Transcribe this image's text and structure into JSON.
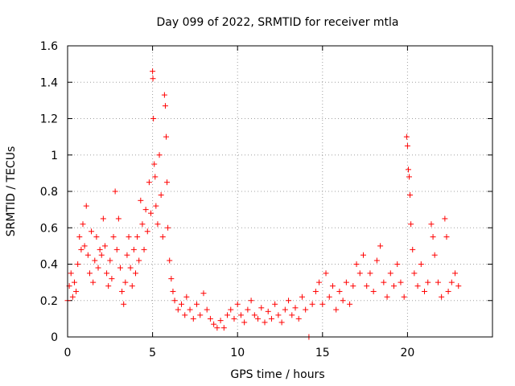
{
  "chart_data": {
    "type": "scatter",
    "title": "Day 099 of 2022, SRMTID for receiver mtla",
    "xlabel": "GPS time / hours",
    "ylabel": "SRMTID / TECUs",
    "xlim": [
      0,
      25
    ],
    "ylim": [
      0,
      1.6
    ],
    "xticks": [
      0,
      5,
      10,
      15,
      20
    ],
    "xtick_labels": [
      "0",
      "5",
      "10",
      "15",
      "20"
    ],
    "yticks": [
      0,
      0.2,
      0.4,
      0.6,
      0.8,
      1,
      1.2,
      1.4,
      1.6
    ],
    "ytick_labels": [
      "0",
      "0.2",
      "0.4",
      "0.6",
      "0.8",
      "1",
      "1.2",
      "1.4",
      "1.6"
    ],
    "grid": true,
    "marker": "+",
    "color": "#ff0000",
    "series": [
      {
        "name": "SRMTID",
        "points": [
          [
            0.0,
            0.2
          ],
          [
            0.1,
            0.28
          ],
          [
            0.2,
            0.35
          ],
          [
            0.3,
            0.22
          ],
          [
            0.4,
            0.3
          ],
          [
            0.5,
            0.25
          ],
          [
            0.6,
            0.4
          ],
          [
            0.7,
            0.55
          ],
          [
            0.8,
            0.48
          ],
          [
            0.9,
            0.62
          ],
          [
            1.0,
            0.5
          ],
          [
            1.1,
            0.72
          ],
          [
            1.2,
            0.45
          ],
          [
            1.3,
            0.35
          ],
          [
            1.4,
            0.58
          ],
          [
            1.5,
            0.3
          ],
          [
            1.6,
            0.42
          ],
          [
            1.7,
            0.55
          ],
          [
            1.8,
            0.38
          ],
          [
            1.9,
            0.48
          ],
          [
            2.0,
            0.45
          ],
          [
            2.1,
            0.65
          ],
          [
            2.2,
            0.5
          ],
          [
            2.3,
            0.35
          ],
          [
            2.4,
            0.28
          ],
          [
            2.5,
            0.42
          ],
          [
            2.6,
            0.32
          ],
          [
            2.7,
            0.55
          ],
          [
            2.8,
            0.8
          ],
          [
            2.9,
            0.48
          ],
          [
            3.0,
            0.65
          ],
          [
            3.1,
            0.38
          ],
          [
            3.2,
            0.25
          ],
          [
            3.3,
            0.18
          ],
          [
            3.4,
            0.3
          ],
          [
            3.5,
            0.45
          ],
          [
            3.6,
            0.55
          ],
          [
            3.7,
            0.38
          ],
          [
            3.8,
            0.28
          ],
          [
            3.9,
            0.48
          ],
          [
            4.0,
            0.35
          ],
          [
            4.1,
            0.55
          ],
          [
            4.2,
            0.42
          ],
          [
            4.3,
            0.75
          ],
          [
            4.4,
            0.62
          ],
          [
            4.5,
            0.48
          ],
          [
            4.6,
            0.7
          ],
          [
            4.7,
            0.58
          ],
          [
            4.8,
            0.85
          ],
          [
            4.9,
            0.68
          ],
          [
            5.0,
            1.46
          ],
          [
            5.02,
            1.42
          ],
          [
            5.05,
            1.2
          ],
          [
            5.1,
            0.95
          ],
          [
            5.15,
            0.88
          ],
          [
            5.2,
            0.72
          ],
          [
            5.3,
            0.62
          ],
          [
            5.4,
            1.0
          ],
          [
            5.5,
            0.78
          ],
          [
            5.6,
            0.55
          ],
          [
            5.7,
            1.33
          ],
          [
            5.75,
            1.27
          ],
          [
            5.8,
            1.1
          ],
          [
            5.85,
            0.85
          ],
          [
            5.9,
            0.6
          ],
          [
            6.0,
            0.42
          ],
          [
            6.1,
            0.32
          ],
          [
            6.2,
            0.25
          ],
          [
            6.3,
            0.2
          ],
          [
            6.5,
            0.15
          ],
          [
            6.7,
            0.18
          ],
          [
            6.9,
            0.12
          ],
          [
            7.0,
            0.22
          ],
          [
            7.2,
            0.15
          ],
          [
            7.4,
            0.1
          ],
          [
            7.6,
            0.18
          ],
          [
            7.8,
            0.12
          ],
          [
            8.0,
            0.24
          ],
          [
            8.2,
            0.15
          ],
          [
            8.4,
            0.1
          ],
          [
            8.6,
            0.07
          ],
          [
            8.8,
            0.05
          ],
          [
            9.0,
            0.09
          ],
          [
            9.2,
            0.05
          ],
          [
            9.4,
            0.12
          ],
          [
            9.6,
            0.15
          ],
          [
            9.8,
            0.1
          ],
          [
            10.0,
            0.18
          ],
          [
            10.2,
            0.12
          ],
          [
            10.4,
            0.08
          ],
          [
            10.6,
            0.15
          ],
          [
            10.8,
            0.2
          ],
          [
            11.0,
            0.12
          ],
          [
            11.2,
            0.1
          ],
          [
            11.4,
            0.16
          ],
          [
            11.6,
            0.08
          ],
          [
            11.8,
            0.14
          ],
          [
            12.0,
            0.1
          ],
          [
            12.2,
            0.18
          ],
          [
            12.4,
            0.12
          ],
          [
            12.6,
            0.08
          ],
          [
            12.8,
            0.15
          ],
          [
            13.0,
            0.2
          ],
          [
            13.2,
            0.12
          ],
          [
            13.4,
            0.16
          ],
          [
            13.6,
            0.1
          ],
          [
            13.8,
            0.22
          ],
          [
            14.0,
            0.15
          ],
          [
            14.2,
            0.0
          ],
          [
            14.4,
            0.18
          ],
          [
            14.6,
            0.25
          ],
          [
            14.8,
            0.3
          ],
          [
            15.0,
            0.18
          ],
          [
            15.2,
            0.35
          ],
          [
            15.4,
            0.22
          ],
          [
            15.6,
            0.28
          ],
          [
            15.8,
            0.15
          ],
          [
            16.0,
            0.25
          ],
          [
            16.2,
            0.2
          ],
          [
            16.4,
            0.3
          ],
          [
            16.6,
            0.18
          ],
          [
            16.8,
            0.28
          ],
          [
            17.0,
            0.4
          ],
          [
            17.2,
            0.35
          ],
          [
            17.4,
            0.45
          ],
          [
            17.6,
            0.28
          ],
          [
            17.8,
            0.35
          ],
          [
            18.0,
            0.25
          ],
          [
            18.2,
            0.42
          ],
          [
            18.4,
            0.5
          ],
          [
            18.6,
            0.3
          ],
          [
            18.8,
            0.22
          ],
          [
            19.0,
            0.35
          ],
          [
            19.2,
            0.28
          ],
          [
            19.4,
            0.4
          ],
          [
            19.6,
            0.3
          ],
          [
            19.8,
            0.22
          ],
          [
            19.95,
            1.1
          ],
          [
            20.0,
            1.05
          ],
          [
            20.05,
            0.92
          ],
          [
            20.1,
            0.88
          ],
          [
            20.15,
            0.78
          ],
          [
            20.2,
            0.62
          ],
          [
            20.3,
            0.48
          ],
          [
            20.4,
            0.35
          ],
          [
            20.6,
            0.28
          ],
          [
            20.8,
            0.4
          ],
          [
            21.0,
            0.25
          ],
          [
            21.2,
            0.3
          ],
          [
            21.4,
            0.62
          ],
          [
            21.5,
            0.55
          ],
          [
            21.6,
            0.45
          ],
          [
            21.8,
            0.3
          ],
          [
            22.0,
            0.22
          ],
          [
            22.2,
            0.65
          ],
          [
            22.3,
            0.55
          ],
          [
            22.4,
            0.25
          ],
          [
            22.6,
            0.3
          ],
          [
            22.8,
            0.35
          ],
          [
            23.0,
            0.28
          ]
        ]
      }
    ]
  }
}
